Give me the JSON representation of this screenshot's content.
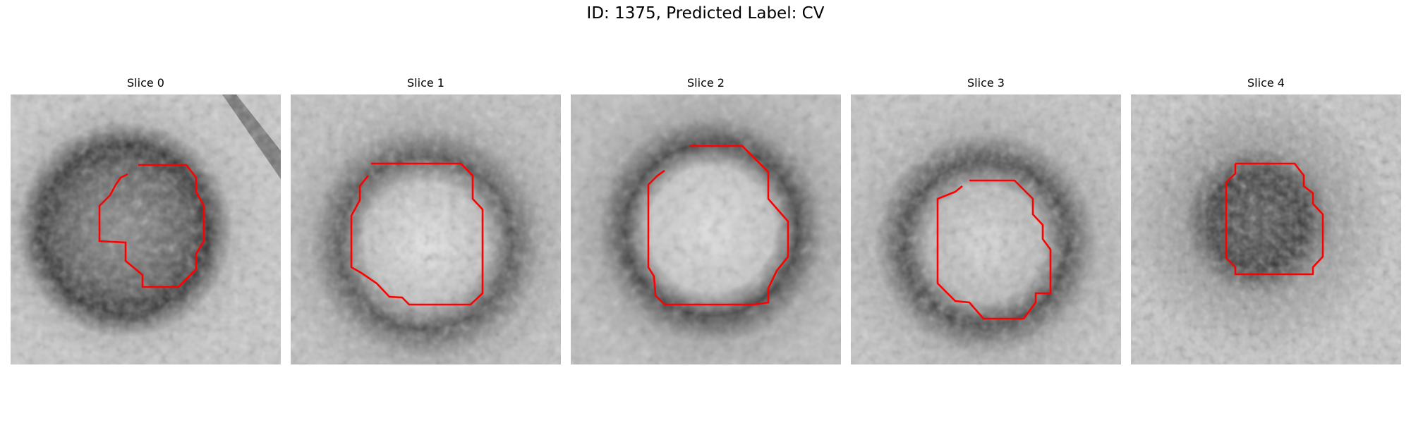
{
  "figure": {
    "title": "ID: 1375, Predicted Label: CV"
  },
  "slices": [
    {
      "label": "Slice 0"
    },
    {
      "label": "Slice 1"
    },
    {
      "label": "Slice 2"
    },
    {
      "label": "Slice 3"
    },
    {
      "label": "Slice 4"
    }
  ],
  "colors": {
    "contour": "#ff0000",
    "background": "#ffffff"
  }
}
